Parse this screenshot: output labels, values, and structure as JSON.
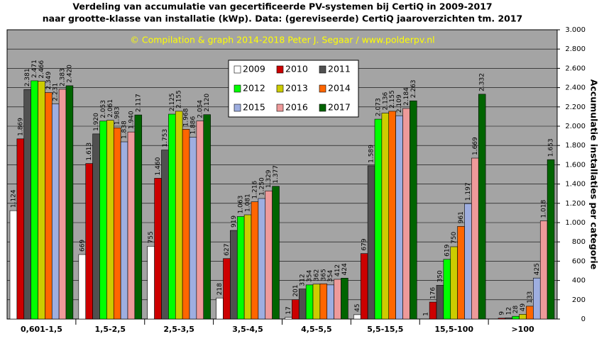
{
  "chart_data": {
    "type": "bar",
    "title": "Verdeling van accumulatie van gecertificeerde PV-systemen bij CertiQ in 2009-2017",
    "subtitle": "naar grootte-klasse van installatie (kWp).  Data: (gereviseerde) CertiQ jaaroverzichten tm. 2017",
    "annotation": "© Compilation  & graph 2014-2018 Peter J. Segaar / www.polderpv.nl",
    "y_label": "Accumulatie installaties per categorie",
    "categories": [
      "0,601-1,5",
      "1,5-2,5",
      "2,5-3,5",
      "3,5-4,5",
      "4,5-5,5",
      "5,5-15,5",
      "15,5-100",
      ">100"
    ],
    "series": [
      {
        "name": "2009",
        "color": "#ffffff",
        "values": [
          1124,
          669,
          755,
          218,
          17,
          45,
          1,
          null
        ],
        "value_labels": [
          "1.124",
          "669",
          "755",
          "218",
          "17",
          "45",
          "1",
          null
        ]
      },
      {
        "name": "2010",
        "color": "#cc0000",
        "values": [
          1869,
          1613,
          1460,
          627,
          201,
          679,
          176,
          9
        ],
        "value_labels": [
          "1.869",
          "1.613",
          "1.460",
          "627",
          "201",
          "679",
          "176",
          "9"
        ]
      },
      {
        "name": "2011",
        "color": "#505050",
        "values": [
          2381,
          1920,
          1753,
          919,
          312,
          1589,
          350,
          12
        ],
        "value_labels": [
          "2.381",
          "1.920",
          "1.753",
          "919",
          "312",
          "1.589",
          "350",
          "12"
        ]
      },
      {
        "name": "2012",
        "color": "#00ff00",
        "values": [
          2471,
          2053,
          2125,
          1063,
          354,
          2073,
          619,
          28
        ],
        "value_labels": [
          "2.471",
          "2.053",
          "2.125",
          "1.063",
          "354",
          "2.073",
          "619",
          "28"
        ]
      },
      {
        "name": "2013",
        "color": "#cccc00",
        "values": [
          2466,
          2061,
          2155,
          1081,
          362,
          2136,
          750,
          49
        ],
        "value_labels": [
          "2.466",
          "2.061",
          "2.155",
          "1.081",
          "362",
          "2.136",
          "750",
          "49"
        ]
      },
      {
        "name": "2014",
        "color": "#ff6600",
        "values": [
          2349,
          1983,
          1968,
          1216,
          365,
          2155,
          961,
          133
        ],
        "value_labels": [
          "2.349",
          "1.983",
          "1.968",
          "1.216",
          "365",
          "2.155",
          "961",
          "133"
        ]
      },
      {
        "name": "2015",
        "color": "#9eaee0",
        "values": [
          2231,
          1838,
          1886,
          1250,
          354,
          2109,
          1197,
          425
        ],
        "value_labels": [
          "2.231",
          "1.838",
          "1.886",
          "1.250",
          "354",
          "2.109",
          "1.197",
          "425"
        ]
      },
      {
        "name": "2016",
        "color": "#ee9a9a",
        "values": [
          2383,
          1940,
          2054,
          1329,
          412,
          2184,
          1669,
          1018
        ],
        "value_labels": [
          "2.383",
          "1.940",
          "2.054",
          "1.329",
          "412",
          "2.184",
          "1.669",
          "1.018"
        ]
      },
      {
        "name": "2017",
        "color": "#006400",
        "values": [
          2420,
          2117,
          2120,
          1377,
          424,
          2263,
          2332,
          1653
        ],
        "value_labels": [
          "2.420",
          "2.117",
          "2.120",
          "1.377",
          "424",
          "2.263",
          "2.332",
          "1.653"
        ]
      }
    ],
    "ylim": [
      0,
      3000
    ],
    "yticks": [
      0,
      200,
      400,
      600,
      800,
      {
        "value": 1000,
        "label": "1.000"
      },
      {
        "value": 1200,
        "label": "1.200"
      },
      {
        "value": 1400,
        "label": "1.400"
      },
      {
        "value": 1600,
        "label": "1.600"
      },
      {
        "value": 1800,
        "label": "1.800"
      },
      {
        "value": 2000,
        "label": "2.000"
      },
      {
        "value": 2200,
        "label": "2.200"
      },
      {
        "value": 2400,
        "label": "2.400"
      },
      {
        "value": 2600,
        "label": "2.600"
      },
      {
        "value": 2800,
        "label": "2.800"
      },
      {
        "value": 3000,
        "label": "3.000"
      }
    ],
    "grid": true,
    "y_axis_side": "right"
  }
}
